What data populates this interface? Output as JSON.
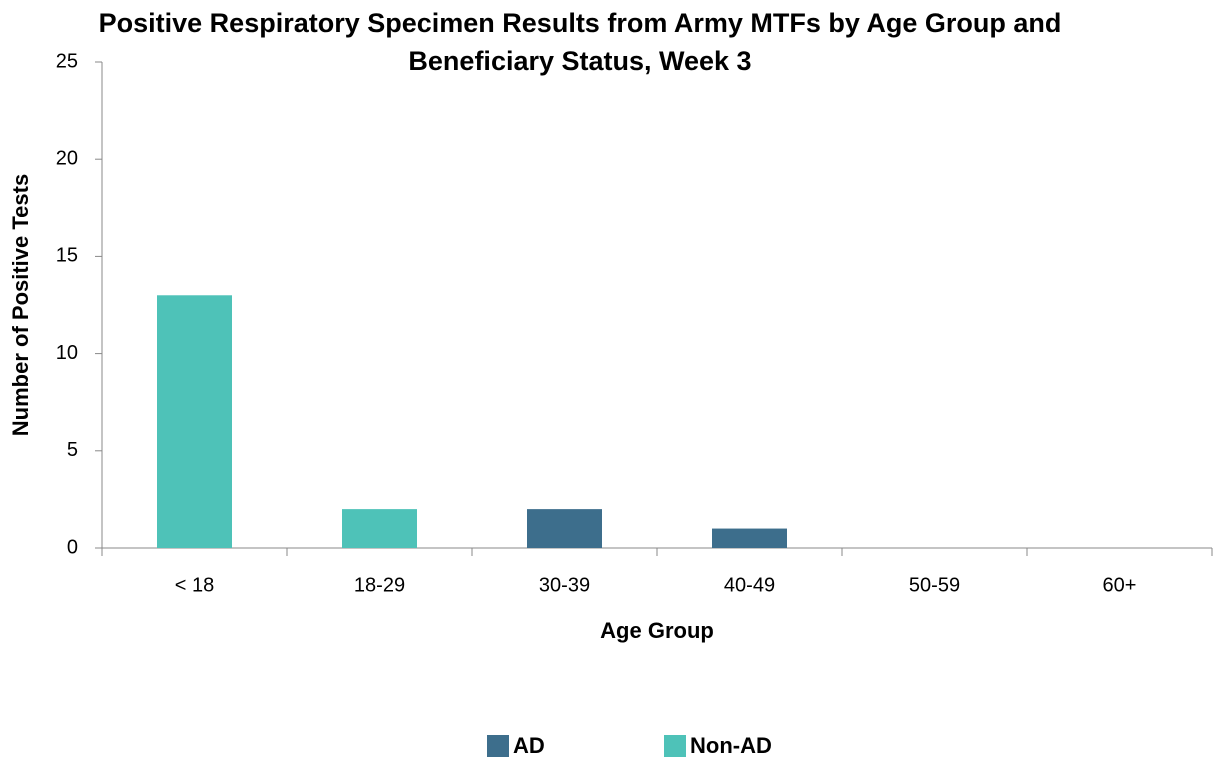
{
  "chart_data": {
    "type": "stacked_bar",
    "title": "Positive Respiratory Specimen Results from Army MTFs by Age Group and Beneficiary Status, Week 3",
    "x_label": "Age Group",
    "y_label": "Number of Positive Tests",
    "categories": [
      "< 18",
      "18-29",
      "30-39",
      "40-49",
      "50-59",
      "60+"
    ],
    "series": [
      {
        "name": "AD",
        "color": "#3d6e8c",
        "values": [
          0,
          0,
          2,
          1,
          0,
          0
        ]
      },
      {
        "name": "Non-AD",
        "color": "#4ec2b8",
        "values": [
          13,
          2,
          0,
          0,
          0,
          0
        ]
      }
    ],
    "ylim": [
      0,
      25
    ],
    "yticks": [
      0,
      5,
      10,
      15,
      20,
      25
    ],
    "grid": false,
    "legend": "bottom"
  }
}
